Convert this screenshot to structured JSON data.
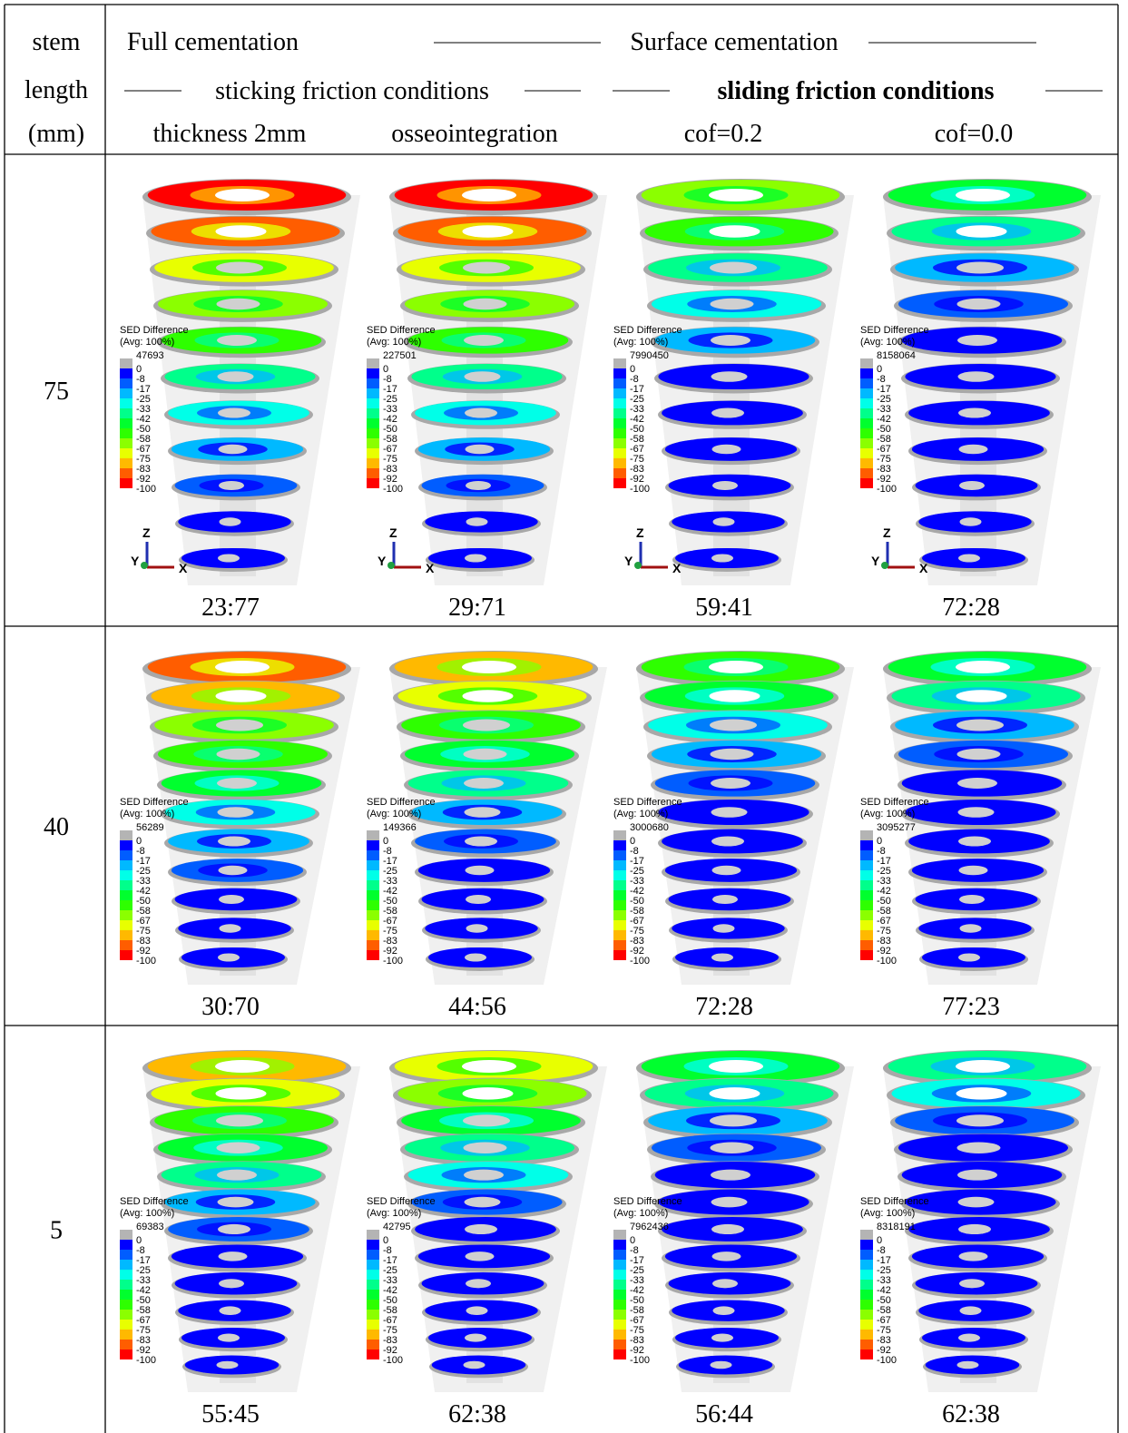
{
  "header": {
    "stem": [
      "stem",
      "length",
      "(mm)"
    ],
    "full": "Full cementation",
    "surface": "Surface cementation",
    "sticking": "sticking friction conditions",
    "sliding": "sliding friction conditions",
    "conditions": [
      "thickness 2mm",
      "osseointegration",
      "cof=0.2",
      "cof=0.0"
    ]
  },
  "legend": {
    "title": "SED Difference",
    "avg": "(Avg: 100%)",
    "ticks": [
      0,
      -8,
      -17,
      -25,
      -33,
      -42,
      -50,
      -58,
      -67,
      -75,
      -83,
      -92,
      -100
    ]
  },
  "axes": {
    "z": "Z",
    "y": "Y",
    "x": "X"
  },
  "rows": [
    {
      "stem": 75,
      "panels": [
        {
          "max": 47693,
          "ratio": "23:77"
        },
        {
          "max": 227501,
          "ratio": "29:71"
        },
        {
          "max": 7990450,
          "ratio": "59:41"
        },
        {
          "max": 8158064,
          "ratio": "72:28"
        }
      ]
    },
    {
      "stem": 40,
      "panels": [
        {
          "max": 56289,
          "ratio": "30:70"
        },
        {
          "max": 149366,
          "ratio": "44:56"
        },
        {
          "max": 3000680,
          "ratio": "72:28"
        },
        {
          "max": 3095277,
          "ratio": "77:23"
        }
      ]
    },
    {
      "stem": 5,
      "panels": [
        {
          "max": 69383,
          "ratio": "55:45"
        },
        {
          "max": 42795,
          "ratio": "62:38"
        },
        {
          "max": 7962436,
          "ratio": "56:44"
        },
        {
          "max": 8318191,
          "ratio": "62:38"
        }
      ]
    }
  ]
}
